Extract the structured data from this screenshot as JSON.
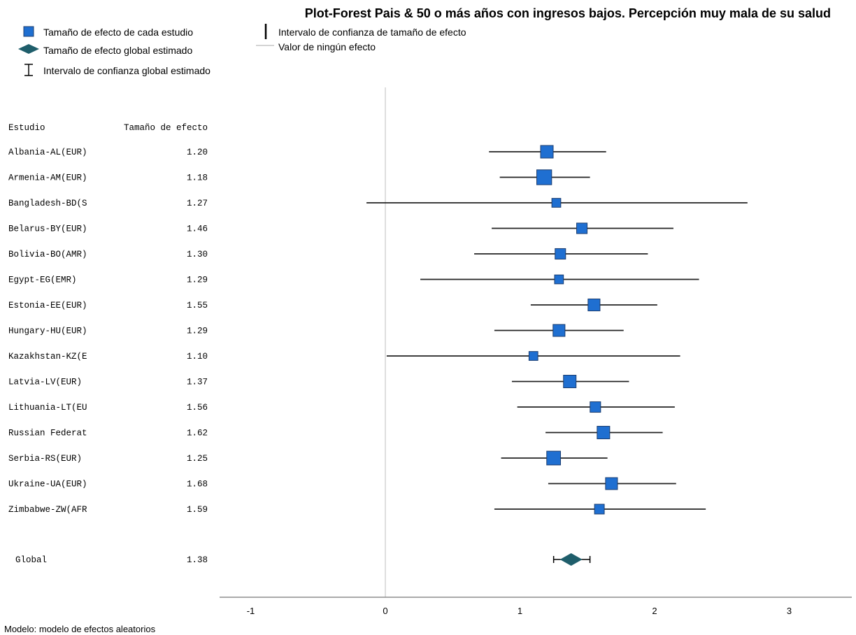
{
  "chart_data": {
    "type": "forest",
    "title": "Plot-Forest Pais & 50 o más años con ingresos bajos. Percepción muy mala de su salud",
    "legend": {
      "study_effect": "Tamaño de efecto de cada estudio",
      "global_effect": "Tamaño de efecto global estimado",
      "global_ci": "Intervalo de confianza global estimado",
      "study_ci": "Intervalo de confianza de tamaño de efecto",
      "no_effect": "Valor de ningún efecto"
    },
    "columns": {
      "study": "Estudio",
      "effect": "Tamaño de efecto"
    },
    "studies": [
      {
        "label": "Albania-AL(EUR)",
        "effect_label": "1.20",
        "effect": 1.2,
        "ci": [
          0.77,
          1.64
        ],
        "weight": 1.0
      },
      {
        "label": "Armenia-AM(EUR)",
        "effect_label": "1.18",
        "effect": 1.18,
        "ci": [
          0.85,
          1.52
        ],
        "weight": 1.4
      },
      {
        "label": "Bangladesh-BD(S",
        "effect_label": "1.27",
        "effect": 1.27,
        "ci": [
          -0.14,
          2.69
        ],
        "weight": 0.5
      },
      {
        "label": "Belarus-BY(EUR)",
        "effect_label": "1.46",
        "effect": 1.46,
        "ci": [
          0.79,
          2.14
        ],
        "weight": 0.7
      },
      {
        "label": "Bolivia-BO(AMR)",
        "effect_label": "1.30",
        "effect": 1.3,
        "ci": [
          0.66,
          1.95
        ],
        "weight": 0.7
      },
      {
        "label": "Egypt-EG(EMR)",
        "effect_label": "1.29",
        "effect": 1.29,
        "ci": [
          0.26,
          2.33
        ],
        "weight": 0.5
      },
      {
        "label": "Estonia-EE(EUR)",
        "effect_label": "1.55",
        "effect": 1.55,
        "ci": [
          1.08,
          2.02
        ],
        "weight": 0.9
      },
      {
        "label": "Hungary-HU(EUR)",
        "effect_label": "1.29",
        "effect": 1.29,
        "ci": [
          0.81,
          1.77
        ],
        "weight": 0.9
      },
      {
        "label": "Kazakhstan-KZ(E",
        "effect_label": "1.10",
        "effect": 1.1,
        "ci": [
          0.01,
          2.19
        ],
        "weight": 0.5
      },
      {
        "label": "Latvia-LV(EUR)",
        "effect_label": "1.37",
        "effect": 1.37,
        "ci": [
          0.94,
          1.81
        ],
        "weight": 1.0
      },
      {
        "label": "Lithuania-LT(EU",
        "effect_label": "1.56",
        "effect": 1.56,
        "ci": [
          0.98,
          2.15
        ],
        "weight": 0.7
      },
      {
        "label": "Russian Federat",
        "effect_label": "1.62",
        "effect": 1.62,
        "ci": [
          1.19,
          2.06
        ],
        "weight": 1.0
      },
      {
        "label": "Serbia-RS(EUR)",
        "effect_label": "1.25",
        "effect": 1.25,
        "ci": [
          0.86,
          1.65
        ],
        "weight": 1.2
      },
      {
        "label": "Ukraine-UA(EUR)",
        "effect_label": "1.68",
        "effect": 1.68,
        "ci": [
          1.21,
          2.16
        ],
        "weight": 0.9
      },
      {
        "label": "Zimbabwe-ZW(AFR",
        "effect_label": "1.59",
        "effect": 1.59,
        "ci": [
          0.81,
          2.38
        ],
        "weight": 0.6
      }
    ],
    "global": {
      "label": "Global",
      "effect_label": "1.38",
      "effect": 1.38,
      "ci": [
        1.25,
        1.52
      ]
    },
    "x_ticks": [
      -1,
      0,
      1,
      2,
      3
    ],
    "x_tick_labels": [
      "-1",
      "0",
      "1",
      "2",
      "3"
    ],
    "xlim": [
      -1.2,
      3.5
    ],
    "no_effect_value": 0,
    "grid": false,
    "legend_position": "top-left",
    "footer": "Modelo: modelo de efectos aleatorios"
  },
  "colors": {
    "square_fill": "#1f6fd1",
    "square_stroke": "#1c3d6e",
    "diamond": "#1f5e6b",
    "ci_line": "#222222",
    "no_effect_line": "#c8c8c8",
    "axis": "#777777"
  },
  "icons": {
    "study": "blue-square-icon",
    "global": "diamond-icon",
    "global_ci": "capped-bar-icon",
    "study_ci": "vertical-bar-icon",
    "no_effect": "thin-line-icon"
  }
}
